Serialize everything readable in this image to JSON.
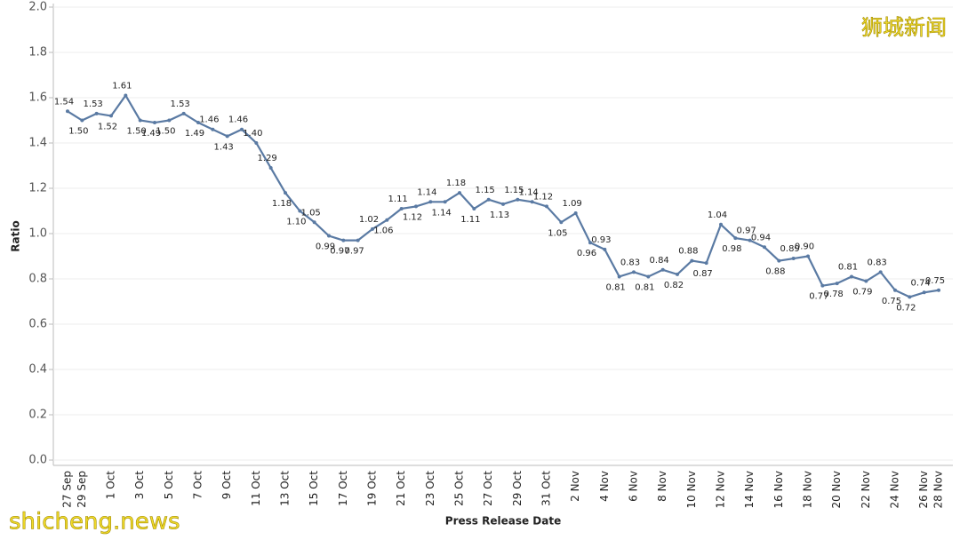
{
  "chart_data": {
    "type": "line",
    "x_label": "Press Release Date",
    "y_label": "Ratio",
    "watermarks": [
      "狮城新闻",
      "shicheng.news"
    ],
    "categories": [
      "27 Sep",
      "29 Sep",
      null,
      "1 Oct",
      null,
      "3 Oct",
      null,
      "5 Oct",
      null,
      "7 Oct",
      null,
      "9 Oct",
      null,
      "11 Oct",
      null,
      "13 Oct",
      null,
      "15 Oct",
      null,
      "17 Oct",
      null,
      "19 Oct",
      null,
      "21 Oct",
      null,
      "23 Oct",
      null,
      "25 Oct",
      null,
      "27 Oct",
      null,
      "29 Oct",
      null,
      "31 Oct",
      null,
      "2 Nov",
      null,
      "4 Nov",
      null,
      "6 Nov",
      null,
      "8 Nov",
      null,
      "10 Nov",
      null,
      "12 Nov",
      null,
      "14 Nov",
      null,
      "16 Nov",
      null,
      "18 Nov",
      null,
      "20 Nov",
      null,
      "22 Nov",
      null,
      "24 Nov",
      null,
      "26 Nov",
      "28 Nov"
    ],
    "series": [
      {
        "name": "Ratio",
        "color": "#5a7aa3",
        "values": [
          1.54,
          1.5,
          1.53,
          1.52,
          1.61,
          1.5,
          1.49,
          1.5,
          1.53,
          1.49,
          1.46,
          1.43,
          1.46,
          1.4,
          1.29,
          1.18,
          1.1,
          1.05,
          0.99,
          0.97,
          0.97,
          1.02,
          1.06,
          1.11,
          1.12,
          1.14,
          1.14,
          1.18,
          1.11,
          1.15,
          1.13,
          1.15,
          1.14,
          1.12,
          1.05,
          1.09,
          0.96,
          0.93,
          0.81,
          0.83,
          0.81,
          0.84,
          0.82,
          0.88,
          0.87,
          1.04,
          0.98,
          0.97,
          0.94,
          0.88,
          0.89,
          0.9,
          0.77,
          0.78,
          0.81,
          0.79,
          0.83,
          0.75,
          0.72,
          0.74,
          0.75
        ],
        "value_labels": [
          "1.54",
          "1.50",
          "1.53",
          "1.52",
          "1.61",
          "1.50",
          "1.49",
          "1.50",
          "1.53",
          "1.49",
          "1.46",
          "1.43",
          "1.46",
          "1.40",
          "1.29",
          "1.18",
          "1.10",
          "1.05",
          "0.99",
          "0.97",
          "0.97",
          "1.02",
          "1.06",
          "1.11",
          "1.12",
          "1.14",
          "1.14",
          "1.18",
          "1.11",
          "1.15",
          "1.13",
          "1.15",
          "1.14",
          "1.12",
          "1.05",
          "1.09",
          "0.96",
          "0.93",
          "0.81",
          "0.83",
          "0.81",
          "0.84",
          "0.82",
          "0.88",
          "0.87",
          "1.04",
          "0.98",
          "0.97",
          "0.94",
          "0.88",
          "0.89",
          "0.90",
          "0.77",
          "0.78",
          "0.81",
          "0.79",
          "0.83",
          "0.75",
          "0.72",
          "0.74",
          "0.75"
        ]
      }
    ],
    "ylim": [
      0,
      2
    ],
    "yticks": [
      {
        "value": 0,
        "label": "0.0"
      },
      {
        "value": 0.2,
        "label": "0.2"
      },
      {
        "value": 0.4,
        "label": "0.4"
      },
      {
        "value": 0.6,
        "label": "0.6"
      },
      {
        "value": 0.8,
        "label": "0.8"
      },
      {
        "value": 1,
        "label": "1.0"
      },
      {
        "value": 1.2,
        "label": "1.2"
      },
      {
        "value": 1.4,
        "label": "1.4"
      },
      {
        "value": 1.6,
        "label": "1.6"
      },
      {
        "value": 1.8,
        "label": "1.8"
      },
      {
        "value": 2,
        "label": "2.0"
      }
    ],
    "grid": true
  }
}
